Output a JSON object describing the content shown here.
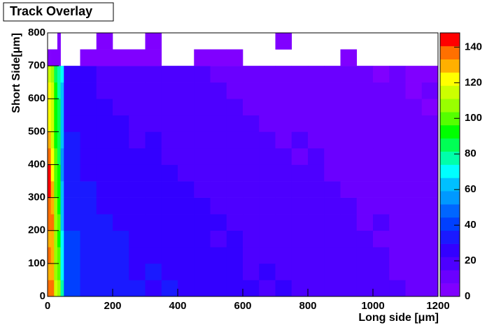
{
  "chart_data": {
    "type": "heatmap",
    "title": "Track Overlay",
    "x_label": "Long side [μm]",
    "y_label": "Short Side[μm]",
    "xbins": [
      0,
      10,
      20,
      30,
      40,
      50,
      100,
      150,
      200,
      250,
      300,
      350,
      400,
      450,
      500,
      550,
      600,
      650,
      700,
      750,
      800,
      850,
      900,
      950,
      1000,
      1050,
      1100,
      1150,
      1200
    ],
    "ybins": [
      0,
      50,
      100,
      150,
      200,
      250,
      300,
      350,
      400,
      450,
      500,
      550,
      600,
      650,
      700,
      750,
      800
    ],
    "values": [
      [
        138,
        135,
        112,
        104,
        78,
        42,
        36,
        34,
        30,
        32,
        28,
        30,
        27,
        26,
        28,
        24,
        25,
        22,
        23,
        20,
        21,
        19,
        18,
        17,
        16,
        15,
        14,
        13
      ],
      [
        132,
        130,
        108,
        100,
        72,
        40,
        34,
        33,
        31,
        28,
        30,
        26,
        27,
        25,
        24,
        26,
        22,
        23,
        21,
        20,
        18,
        19,
        17,
        16,
        15,
        14,
        13,
        12
      ],
      [
        134,
        128,
        110,
        98,
        70,
        38,
        35,
        32,
        30,
        29,
        27,
        28,
        25,
        26,
        23,
        24,
        22,
        21,
        20,
        19,
        20,
        17,
        16,
        15,
        16,
        14,
        13,
        12
      ],
      [
        130,
        132,
        106,
        96,
        68,
        37,
        33,
        30,
        31,
        27,
        28,
        25,
        26,
        24,
        22,
        23,
        21,
        22,
        19,
        20,
        18,
        17,
        16,
        15,
        14,
        13,
        12,
        11
      ],
      [
        136,
        134,
        108,
        100,
        66,
        36,
        32,
        31,
        29,
        28,
        26,
        27,
        24,
        25,
        23,
        22,
        21,
        20,
        19,
        18,
        19,
        16,
        15,
        14,
        15,
        13,
        12,
        11
      ],
      [
        140,
        126,
        104,
        94,
        62,
        35,
        31,
        29,
        28,
        27,
        25,
        24,
        26,
        23,
        22,
        21,
        20,
        19,
        18,
        17,
        16,
        17,
        15,
        14,
        13,
        12,
        11,
        10
      ],
      [
        142,
        128,
        102,
        92,
        60,
        34,
        30,
        28,
        27,
        25,
        26,
        23,
        24,
        22,
        21,
        20,
        19,
        18,
        17,
        16,
        15,
        16,
        14,
        13,
        12,
        11,
        12,
        10
      ],
      [
        144,
        124,
        100,
        90,
        58,
        32,
        29,
        27,
        26,
        24,
        23,
        25,
        22,
        21,
        20,
        19,
        18,
        17,
        16,
        15,
        16,
        14,
        13,
        12,
        11,
        12,
        10,
        9
      ],
      [
        138,
        122,
        98,
        88,
        56,
        31,
        28,
        26,
        25,
        23,
        24,
        22,
        21,
        20,
        19,
        18,
        17,
        16,
        15,
        14,
        15,
        13,
        12,
        11,
        10,
        11,
        9,
        9
      ],
      [
        126,
        118,
        96,
        86,
        60,
        30,
        27,
        25,
        24,
        22,
        23,
        21,
        20,
        19,
        18,
        17,
        16,
        15,
        14,
        15,
        13,
        12,
        11,
        10,
        11,
        9,
        10,
        8
      ],
      [
        124,
        116,
        94,
        84,
        62,
        29,
        26,
        24,
        23,
        21,
        22,
        20,
        19,
        18,
        17,
        16,
        15,
        14,
        13,
        14,
        12,
        11,
        10,
        11,
        9,
        10,
        8,
        8
      ],
      [
        122,
        114,
        92,
        82,
        64,
        28,
        25,
        23,
        22,
        20,
        21,
        19,
        18,
        17,
        16,
        15,
        14,
        13,
        14,
        12,
        11,
        10,
        11,
        9,
        10,
        8,
        9,
        7
      ],
      [
        120,
        112,
        90,
        80,
        66,
        27,
        24,
        22,
        21,
        19,
        20,
        18,
        17,
        16,
        15,
        14,
        13,
        14,
        12,
        11,
        10,
        11,
        9,
        10,
        8,
        9,
        7,
        8
      ],
      [
        118,
        110,
        88,
        78,
        70,
        26,
        23,
        21,
        20,
        18,
        19,
        17,
        16,
        15,
        14,
        13,
        12,
        11,
        12,
        10,
        9,
        10,
        8,
        9,
        7,
        8,
        7,
        6
      ],
      [
        3,
        2,
        2,
        3,
        null,
        null,
        2,
        3,
        3,
        2,
        2,
        null,
        null,
        2,
        3,
        2,
        null,
        null,
        null,
        null,
        null,
        null,
        2,
        null,
        null,
        null,
        null,
        null
      ],
      [
        null,
        null,
        null,
        2,
        null,
        null,
        null,
        2,
        null,
        null,
        2,
        null,
        null,
        null,
        null,
        null,
        null,
        null,
        2,
        null,
        null,
        null,
        null,
        null,
        null,
        null,
        null,
        null
      ]
    ],
    "xlim": [
      0,
      1200
    ],
    "ylim": [
      0,
      800
    ],
    "zlim": [
      0,
      148
    ],
    "xticks": [
      0,
      200,
      400,
      600,
      800,
      1000,
      1200
    ],
    "yticks": [
      0,
      100,
      200,
      300,
      400,
      500,
      600,
      700,
      800
    ],
    "zticks": [
      0,
      20,
      40,
      60,
      80,
      100,
      120,
      140
    ],
    "colors": [
      "#8000ff",
      "#6a00ff",
      "#4d00ff",
      "#3300ff",
      "#1a1aff",
      "#0040ff",
      "#0066ff",
      "#0099ff",
      "#00c0ff",
      "#00ffff",
      "#00ffaa",
      "#00ff55",
      "#00ff00",
      "#55ff00",
      "#99ff00",
      "#ccff00",
      "#ffff00",
      "#ffb000",
      "#ff7000",
      "#ff0000"
    ]
  }
}
